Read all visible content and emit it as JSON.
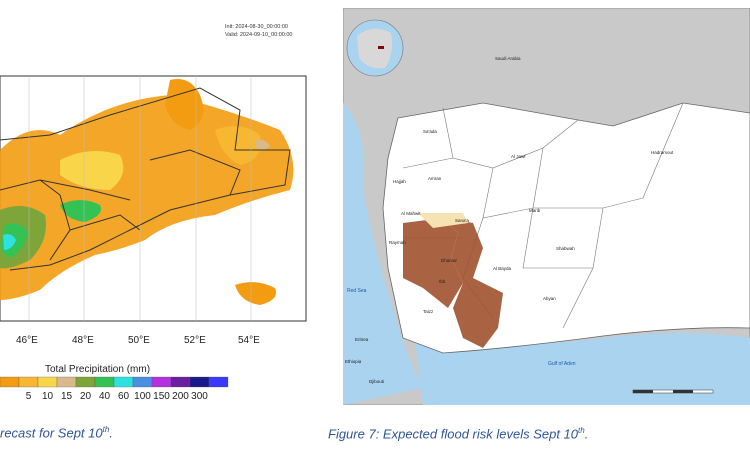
{
  "left_figure": {
    "init_text": "Init: 2024-08-30_00:00:00",
    "valid_text": "Valid: 2024-09-10_00:00:00",
    "x_ticks": [
      "46°E",
      "48°E",
      "50°E",
      "52°E",
      "54°E"
    ],
    "legend_title": "Total Precipitation  (mm)",
    "legend_values": [
      "5",
      "10",
      "15",
      "20",
      "40",
      "60",
      "100",
      "150",
      "200",
      "300"
    ],
    "legend_colors": [
      "#f39c12",
      "#f7b731",
      "#f9d54a",
      "#d9b98c",
      "#7ea53a",
      "#35c255",
      "#2ee0e0",
      "#4a90e2",
      "#b530e0",
      "#6a1fa0",
      "#1a1a8c",
      "#3a3aff"
    ],
    "caption": "recast for Sept 10"
  },
  "right_figure": {
    "countries": [
      "Saudi Arabia"
    ],
    "sea_labels": [
      "Red Sea",
      "Gulf of Aden"
    ],
    "neighbors": [
      "Eritrea",
      "Djibouti",
      "Ethiopia"
    ],
    "governorates": [
      "Sa'ada",
      "Al Jawf",
      "Hadramout",
      "Hajjah",
      "Amran",
      "Al Mahwit",
      "Sana'a",
      "Marib",
      "Shabwah",
      "Al Bayda",
      "Taizz",
      "Abyan",
      "Raymah",
      "Dhamar",
      "Ibb"
    ],
    "caption": "Figure 7: Expected flood risk levels Sept 10"
  },
  "caption_suffix": "th",
  "caption_tail": "."
}
